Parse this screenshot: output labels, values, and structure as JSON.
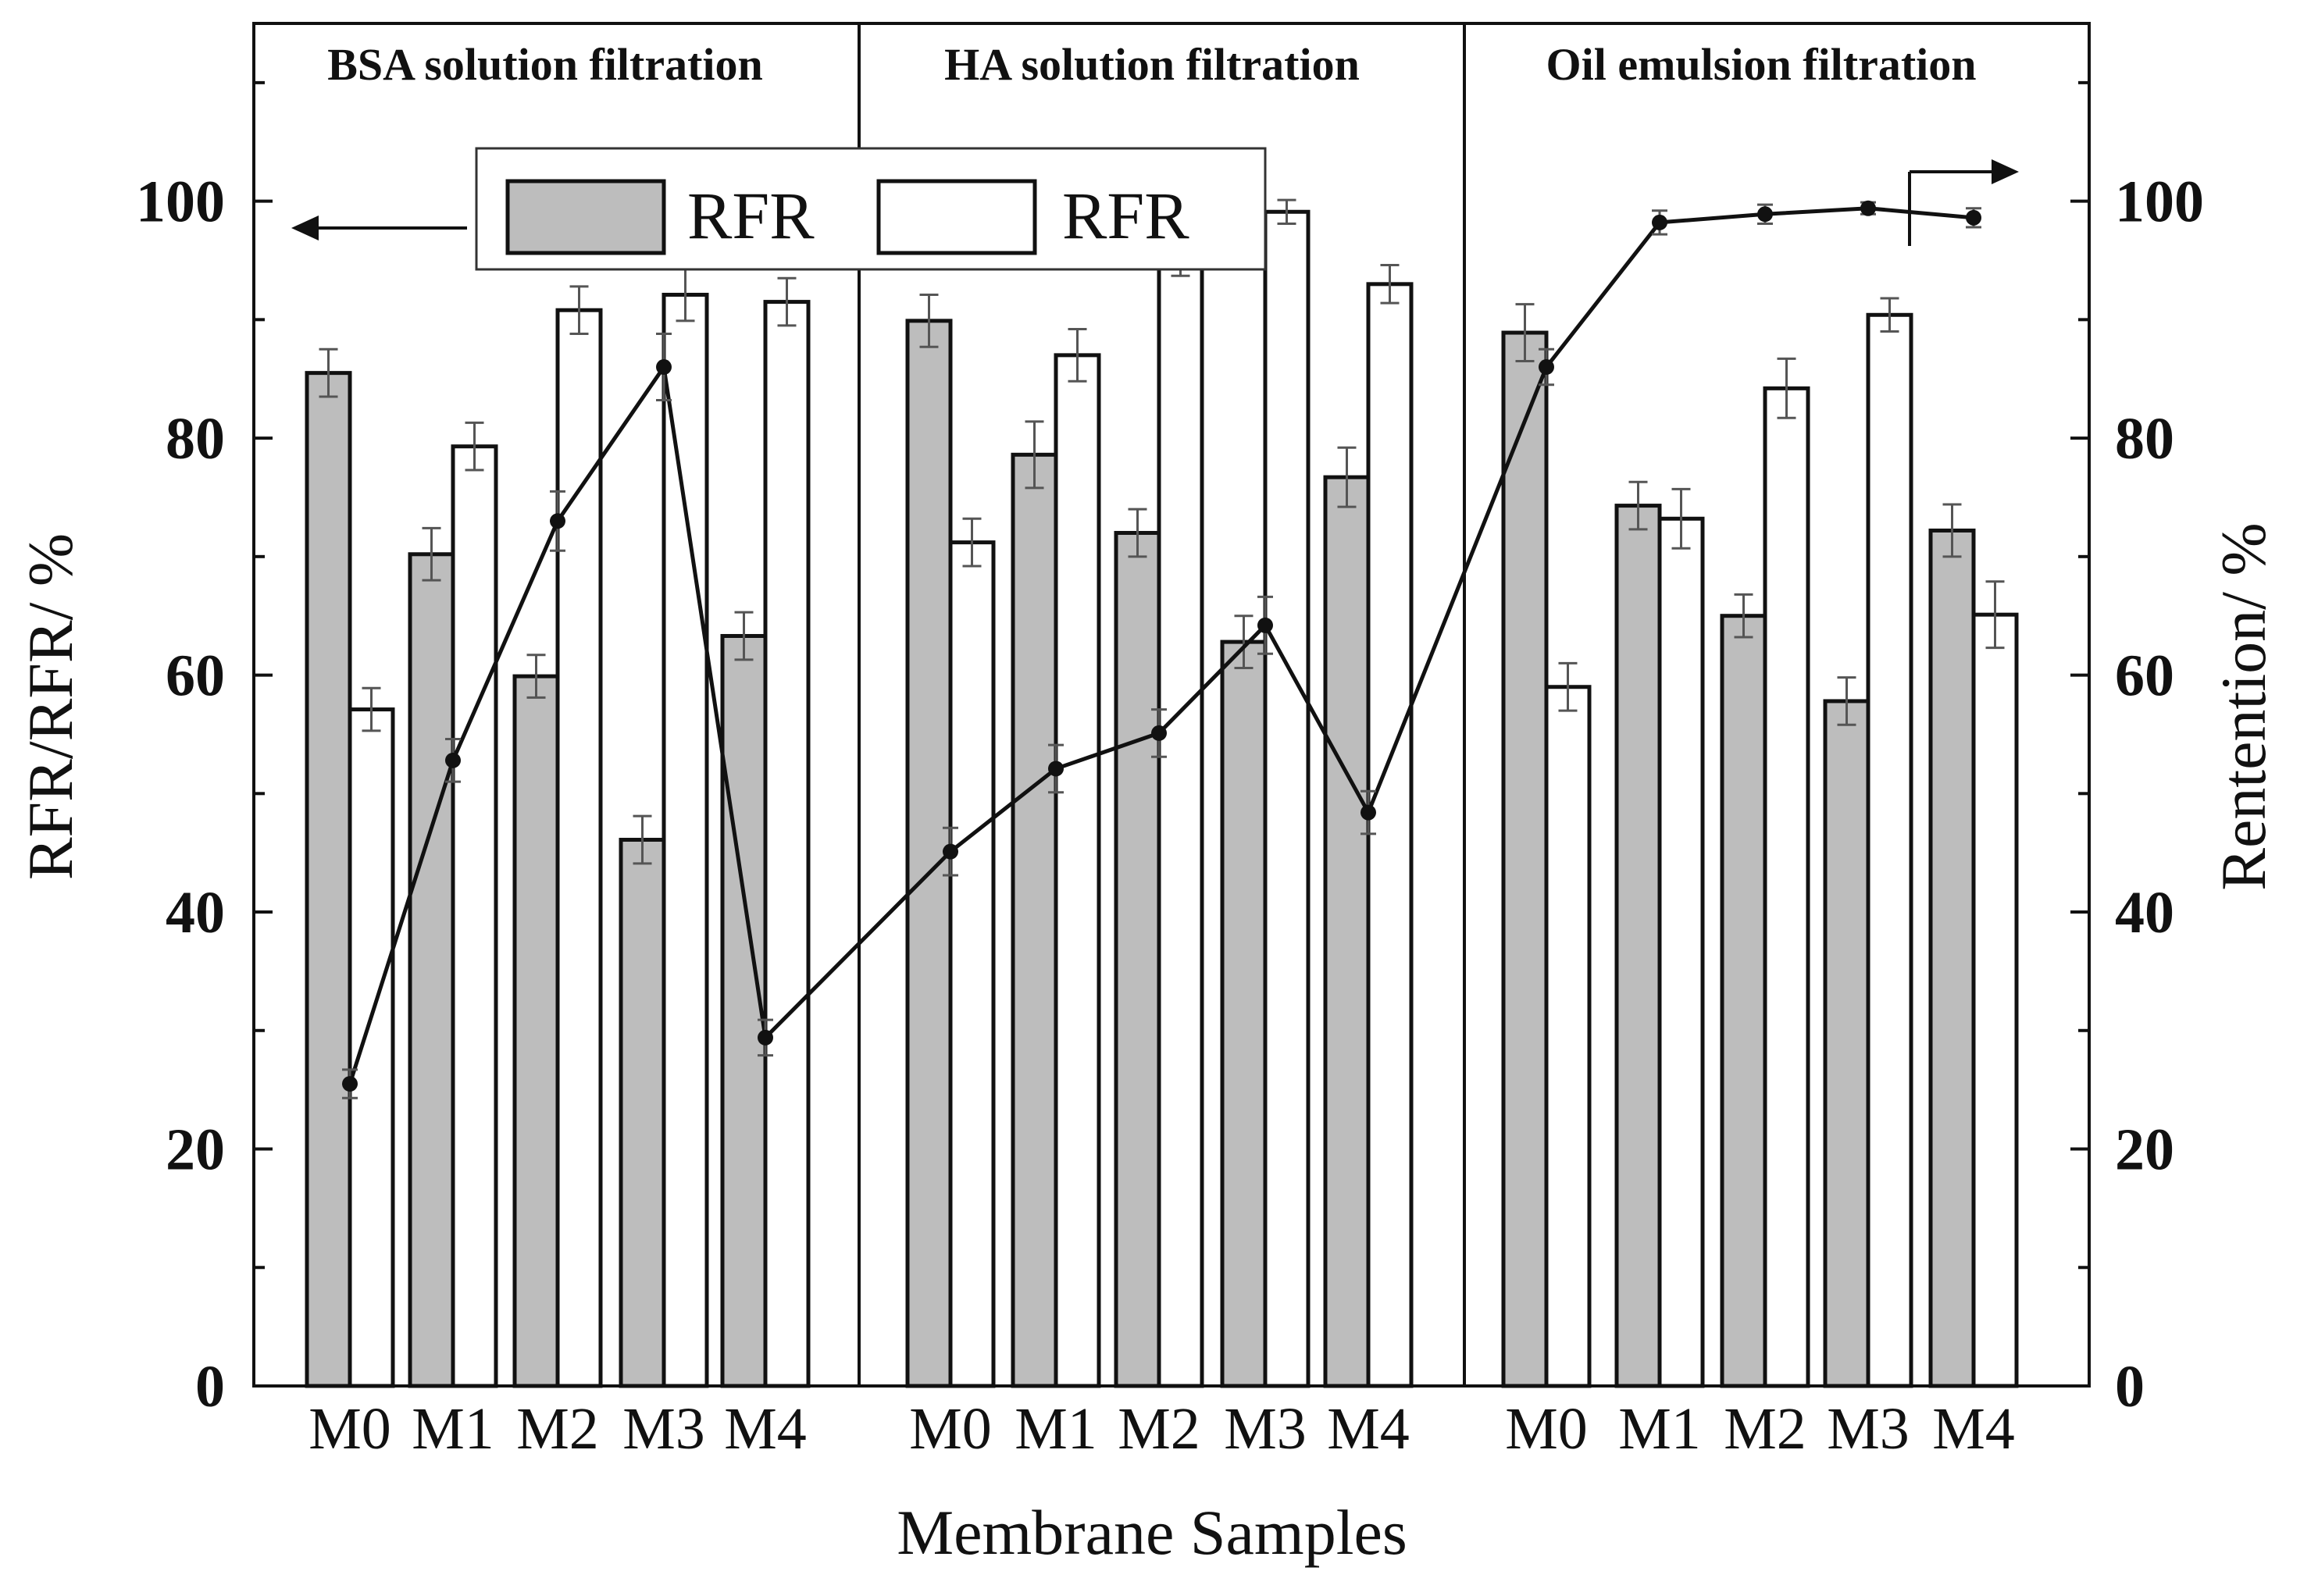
{
  "chart_data": {
    "type": "bar",
    "x_label": "Membrane Samples",
    "left_y_label": "RFR/RFR/ %",
    "right_y_label": "Rentention/ %",
    "left_ylim": [
      0,
      115
    ],
    "right_ylim": [
      0,
      115
    ],
    "left_ticks": [
      0,
      20,
      40,
      60,
      80,
      100
    ],
    "right_ticks": [
      0,
      20,
      40,
      60,
      80,
      100
    ],
    "legend": [
      {
        "label": "RFR",
        "color": "#bdbdbd"
      },
      {
        "label": "RFR",
        "color": "#ffffff"
      }
    ],
    "groups": [
      {
        "title": "BSA solution filtration",
        "categories": [
          "M0",
          "M1",
          "M2",
          "M3",
          "M4"
        ],
        "gray_values": [
          85.5,
          70.2,
          59.9,
          46.1,
          63.3
        ],
        "gray_errors": [
          2.0,
          2.2,
          1.8,
          2.0,
          2.0
        ],
        "white_values": [
          57.1,
          79.3,
          90.8,
          92.1,
          91.5
        ],
        "white_errors": [
          1.8,
          2.0,
          2.0,
          2.2,
          2.0
        ],
        "retention": [
          25.5,
          52.8,
          73.0,
          86.0,
          29.4
        ],
        "retention_errors": [
          1.2,
          1.8,
          2.5,
          2.8,
          1.5
        ]
      },
      {
        "title": "HA solution filtration",
        "categories": [
          "M0",
          "M1",
          "M2",
          "M3",
          "M4"
        ],
        "gray_values": [
          89.9,
          78.6,
          72.0,
          62.8,
          76.7
        ],
        "gray_errors": [
          2.2,
          2.8,
          2.0,
          2.2,
          2.5
        ],
        "white_values": [
          71.2,
          87.0,
          94.9,
          99.1,
          93.0
        ],
        "white_errors": [
          2.0,
          2.2,
          1.2,
          1.0,
          1.6
        ],
        "retention": [
          45.1,
          52.1,
          55.1,
          64.2,
          48.4
        ],
        "retention_errors": [
          2.0,
          2.0,
          2.0,
          2.4,
          1.8
        ]
      },
      {
        "title": "Oil emulsion filtration",
        "categories": [
          "M0",
          "M1",
          "M2",
          "M3",
          "M4"
        ],
        "gray_values": [
          88.9,
          74.3,
          65.0,
          57.8,
          72.2
        ],
        "gray_errors": [
          2.4,
          2.0,
          1.8,
          2.0,
          2.2
        ],
        "white_values": [
          59.0,
          73.2,
          84.2,
          90.4,
          65.1
        ],
        "white_errors": [
          2.0,
          2.5,
          2.5,
          1.4,
          2.8
        ],
        "retention": [
          86.0,
          98.2,
          98.9,
          99.4,
          98.6
        ],
        "retention_errors": [
          1.5,
          1.0,
          0.8,
          0.5,
          0.8
        ]
      }
    ]
  }
}
